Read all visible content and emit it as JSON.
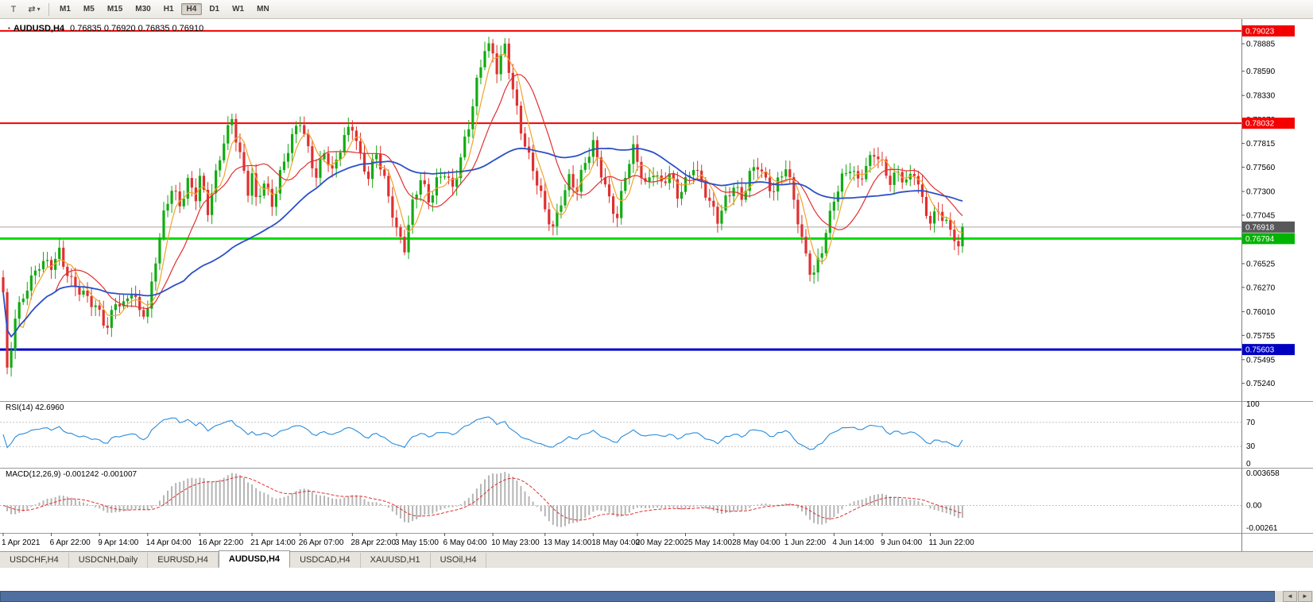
{
  "toolbar": {
    "tool_icons": [
      {
        "name": "pointer-tool-icon",
        "glyph": "T"
      },
      {
        "name": "chart-shift-icon",
        "glyph": "⇄"
      },
      {
        "name": "dropdown-caret-icon",
        "glyph": "▾"
      }
    ],
    "timeframes": [
      "M1",
      "M5",
      "M15",
      "M30",
      "H1",
      "H4",
      "D1",
      "W1",
      "MN"
    ],
    "active_timeframe": "H4"
  },
  "chart": {
    "symbol_title": "AUDUSD,H4",
    "ohlc_text": "0.76835 0.76920 0.76835 0.76910",
    "marker_glyph": "▪"
  },
  "chart_data": {
    "type": "candlestick",
    "symbol": "AUDUSD",
    "timeframe": "H4",
    "current_bid": "0.76918",
    "y_range": [
      0.7505,
      0.7915
    ],
    "y_axis_labels": [
      "0.78885",
      "0.78590",
      "0.78330",
      "0.78070",
      "0.77815",
      "0.77560",
      "0.77300",
      "0.77045",
      "0.76525",
      "0.76270",
      "0.76010",
      "0.75755",
      "0.75495",
      "0.75240"
    ],
    "price_levels": [
      {
        "price": 0.79023,
        "label": "0.79023",
        "color": "#f40000",
        "badge": "#f40000",
        "width": 2
      },
      {
        "price": 0.78032,
        "label": "0.78032",
        "color": "#f40000",
        "badge": "#f40000",
        "width": 2
      },
      {
        "price": 0.76918,
        "label": "0.76918",
        "color": "#a8a8a8",
        "badge": "#58585a",
        "width": 1
      },
      {
        "price": 0.76794,
        "label": "0.76794",
        "color": "#00dc00",
        "badge": "#00b400",
        "width": 3
      },
      {
        "price": 0.75603,
        "label": "0.75603",
        "color": "#0000cd",
        "badge": "#0000c0",
        "width": 3
      }
    ],
    "num_candles": 240,
    "colors": {
      "bull": "#12ab12",
      "bear": "#e03030"
    },
    "price_waypoints": [
      [
        0,
        0.7618
      ],
      [
        1,
        0.7532
      ],
      [
        2,
        0.7561
      ],
      [
        3,
        0.7596
      ],
      [
        6,
        0.7632
      ],
      [
        9,
        0.765
      ],
      [
        12,
        0.7648
      ],
      [
        14,
        0.7666
      ],
      [
        17,
        0.7636
      ],
      [
        20,
        0.7616
      ],
      [
        24,
        0.76
      ],
      [
        26,
        0.7588
      ],
      [
        28,
        0.7614
      ],
      [
        30,
        0.7604
      ],
      [
        32,
        0.762
      ],
      [
        34,
        0.7601
      ],
      [
        36,
        0.7606
      ],
      [
        38,
        0.766
      ],
      [
        40,
        0.7702
      ],
      [
        42,
        0.773
      ],
      [
        44,
        0.7714
      ],
      [
        46,
        0.7744
      ],
      [
        48,
        0.7728
      ],
      [
        49,
        0.7746
      ],
      [
        51,
        0.7706
      ],
      [
        53,
        0.7744
      ],
      [
        55,
        0.7786
      ],
      [
        57,
        0.7812
      ],
      [
        59,
        0.777
      ],
      [
        61,
        0.7728
      ],
      [
        62,
        0.7744
      ],
      [
        63,
        0.7716
      ],
      [
        65,
        0.774
      ],
      [
        67,
        0.772
      ],
      [
        69,
        0.775
      ],
      [
        71,
        0.7774
      ],
      [
        73,
        0.7794
      ],
      [
        74,
        0.7804
      ],
      [
        76,
        0.7776
      ],
      [
        78,
        0.775
      ],
      [
        80,
        0.7774
      ],
      [
        82,
        0.7746
      ],
      [
        84,
        0.7774
      ],
      [
        86,
        0.7798
      ],
      [
        87,
        0.7804
      ],
      [
        89,
        0.777
      ],
      [
        91,
        0.7744
      ],
      [
        93,
        0.7768
      ],
      [
        95,
        0.774
      ],
      [
        97,
        0.771
      ],
      [
        98,
        0.7692
      ],
      [
        100,
        0.7672
      ],
      [
        102,
        0.7714
      ],
      [
        104,
        0.774
      ],
      [
        106,
        0.772
      ],
      [
        108,
        0.7744
      ],
      [
        110,
        0.7754
      ],
      [
        112,
        0.773
      ],
      [
        114,
        0.7762
      ],
      [
        116,
        0.78
      ],
      [
        118,
        0.785
      ],
      [
        120,
        0.7888
      ],
      [
        121,
        0.7894
      ],
      [
        123,
        0.7858
      ],
      [
        125,
        0.7882
      ],
      [
        127,
        0.784
      ],
      [
        129,
        0.78
      ],
      [
        131,
        0.7768
      ],
      [
        133,
        0.7738
      ],
      [
        135,
        0.7706
      ],
      [
        137,
        0.769
      ],
      [
        139,
        0.7724
      ],
      [
        141,
        0.7746
      ],
      [
        143,
        0.773
      ],
      [
        145,
        0.7758
      ],
      [
        147,
        0.778
      ],
      [
        149,
        0.7754
      ],
      [
        151,
        0.7724
      ],
      [
        153,
        0.77
      ],
      [
        155,
        0.7744
      ],
      [
        157,
        0.7774
      ],
      [
        158,
        0.7764
      ],
      [
        160,
        0.774
      ],
      [
        162,
        0.7754
      ],
      [
        164,
        0.7734
      ],
      [
        166,
        0.7746
      ],
      [
        168,
        0.7726
      ],
      [
        170,
        0.7744
      ],
      [
        172,
        0.776
      ],
      [
        174,
        0.7736
      ],
      [
        176,
        0.7714
      ],
      [
        178,
        0.77
      ],
      [
        180,
        0.7724
      ],
      [
        182,
        0.774
      ],
      [
        184,
        0.772
      ],
      [
        186,
        0.7744
      ],
      [
        188,
        0.7758
      ],
      [
        190,
        0.7744
      ],
      [
        192,
        0.7734
      ],
      [
        194,
        0.7748
      ],
      [
        195,
        0.7754
      ],
      [
        197,
        0.7718
      ],
      [
        199,
        0.7678
      ],
      [
        201,
        0.765
      ],
      [
        202,
        0.7645
      ],
      [
        204,
        0.7668
      ],
      [
        206,
        0.77
      ],
      [
        207,
        0.7718
      ],
      [
        209,
        0.7744
      ],
      [
        211,
        0.776
      ],
      [
        213,
        0.7744
      ],
      [
        215,
        0.7754
      ],
      [
        217,
        0.7768
      ],
      [
        219,
        0.7758
      ],
      [
        221,
        0.7744
      ],
      [
        223,
        0.7754
      ],
      [
        225,
        0.7738
      ],
      [
        227,
        0.7748
      ],
      [
        229,
        0.7718
      ],
      [
        231,
        0.77
      ],
      [
        233,
        0.7714
      ],
      [
        235,
        0.7694
      ],
      [
        237,
        0.7678
      ],
      [
        238,
        0.7664
      ],
      [
        239,
        0.7692
      ]
    ],
    "moving_averages": [
      {
        "name": "ma-fast",
        "period": 5,
        "color": "#f2a32a",
        "width": 1.2
      },
      {
        "name": "ma-mid",
        "period": 13,
        "color": "#e03030",
        "width": 1.2
      },
      {
        "name": "ma-slow",
        "period": 45,
        "color": "#2b50c8",
        "width": 1.8
      }
    ],
    "x_axis_labels": [
      {
        "t": "1 Apr 2021",
        "i": 0
      },
      {
        "t": "6 Apr 22:00",
        "i": 12
      },
      {
        "t": "9 Apr 14:00",
        "i": 24
      },
      {
        "t": "14 Apr 04:00",
        "i": 36
      },
      {
        "t": "16 Apr 22:00",
        "i": 49
      },
      {
        "t": "21 Apr 14:00",
        "i": 62
      },
      {
        "t": "26 Apr 07:00",
        "i": 74
      },
      {
        "t": "28 Apr 22:00",
        "i": 87
      },
      {
        "t": "3 May 15:00",
        "i": 98
      },
      {
        "t": "6 May 04:00",
        "i": 110
      },
      {
        "t": "10 May 23:00",
        "i": 122
      },
      {
        "t": "13 May 14:00",
        "i": 135
      },
      {
        "t": "18 May 04:00",
        "i": 147
      },
      {
        "t": "20 May 22:00",
        "i": 158
      },
      {
        "t": "25 May 14:00",
        "i": 170
      },
      {
        "t": "28 May 04:00",
        "i": 182
      },
      {
        "t": "1 Jun 22:00",
        "i": 195
      },
      {
        "t": "4 Jun 14:00",
        "i": 207
      },
      {
        "t": "9 Jun 04:00",
        "i": 219
      },
      {
        "t": "11 Jun 22:00",
        "i": 231
      }
    ],
    "indicators": {
      "rsi": {
        "name": "RSI",
        "period": 14,
        "value": "42.6960",
        "label": "RSI(14) 42.6960",
        "levels": [
          100,
          70,
          30,
          0
        ],
        "color": "#2a8cdc"
      },
      "macd": {
        "name": "MACD",
        "params": "12,26,9",
        "values": "-0.001242 -0.001007",
        "label": "MACD(12,26,9) -0.001242 -0.001007",
        "axis_labels": [
          {
            "text": "0.003658",
            "v": 0.003658
          },
          {
            "text": "0.00",
            "v": 0
          },
          {
            "text": "-0.00261",
            "v": -0.002612
          }
        ],
        "range": [
          -0.002612,
          0.003658
        ],
        "histogram_color": "#b5b5b5",
        "signal_color": "#e03030"
      }
    }
  },
  "tabs": {
    "items": [
      "USDCHF,H4",
      "USDCNH,Daily",
      "EURUSD,H4",
      "AUDUSD,H4",
      "USDCAD,H4",
      "XAUUSD,H1",
      "USOil,H4"
    ],
    "active": "AUDUSD,H4"
  },
  "scrollbar": {
    "left_arrow": "◄",
    "right_arrow": "►"
  }
}
